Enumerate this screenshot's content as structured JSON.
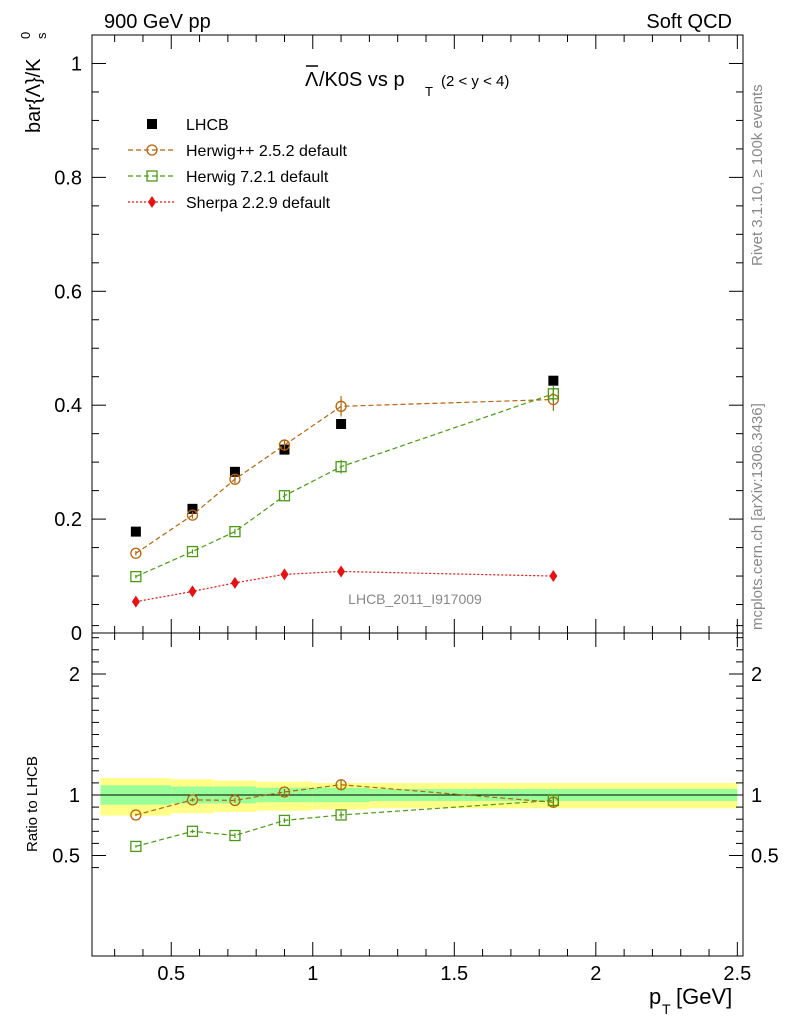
{
  "header": {
    "left": "900 GeV pp",
    "right": "Soft QCD"
  },
  "side": {
    "rivet": "Rivet 3.1.10, ≥ 100k events",
    "mcplots": "mcplots.cern.ch [arXiv:1306.3436]"
  },
  "watermark": "LHCB_2011_I917009",
  "colors": {
    "lhcb": "#000000",
    "herwigpp": "#b8640a",
    "herwig7": "#4a9a14",
    "sherpa": "#e81010",
    "band_inner": "#99ff99",
    "band_outer": "#ffff88"
  },
  "chart_data": [
    {
      "type": "scatter",
      "panel": "main",
      "title": "Λ̅/K0S vs p_T (2 < y < 4)",
      "title_main": "/K0S vs p",
      "title_sub": "T",
      "title_range": "(2 < y < 4)",
      "ylabel": "bar{Λ}/K⁰ₛ",
      "ylabel_main": "bar{Λ}/K",
      "ylabel_sup": "0",
      "ylabel_sub": "s",
      "xlim": [
        0.22,
        2.52
      ],
      "ylim": [
        0,
        1.05
      ],
      "yticks": [
        "0",
        "0.2",
        "0.4",
        "0.6",
        "0.8",
        "1"
      ],
      "ytick_values": [
        0,
        0.2,
        0.4,
        0.6,
        0.8,
        1.0
      ],
      "legend_position": "top-left",
      "series": [
        {
          "name": "LHCB",
          "marker": "square-filled",
          "line": "none",
          "x": [
            0.375,
            0.575,
            0.725,
            0.9,
            1.1,
            1.85
          ],
          "y": [
            0.178,
            0.218,
            0.283,
            0.322,
            0.367,
            0.443
          ]
        },
        {
          "name": "Herwig++ 2.5.2 default",
          "marker": "circle-open",
          "line": "dashed",
          "x": [
            0.375,
            0.575,
            0.725,
            0.9,
            1.1,
            1.85
          ],
          "y": [
            0.14,
            0.207,
            0.27,
            0.33,
            0.398,
            0.41
          ],
          "err": [
            0.004,
            0.006,
            0.007,
            0.01,
            0.018,
            0.02
          ]
        },
        {
          "name": "Herwig 7.2.1 default",
          "marker": "square-open",
          "line": "dashed",
          "x": [
            0.375,
            0.575,
            0.725,
            0.9,
            1.1,
            1.85
          ],
          "y": [
            0.099,
            0.143,
            0.178,
            0.241,
            0.292,
            0.42
          ],
          "err": [
            0.003,
            0.004,
            0.005,
            0.007,
            0.012,
            0.015
          ]
        },
        {
          "name": "Sherpa 2.2.9 default",
          "marker": "diamond-filled",
          "line": "dotted",
          "x": [
            0.375,
            0.575,
            0.725,
            0.9,
            1.1,
            1.85
          ],
          "y": [
            0.055,
            0.073,
            0.088,
            0.103,
            0.108,
            0.1
          ]
        }
      ]
    },
    {
      "type": "scatter",
      "panel": "ratio",
      "ylabel": "Ratio to LHCB",
      "xlabel": "p_T [GeV]",
      "xlabel_main": "p",
      "xlabel_sub": "T",
      "xlabel_unit": "[GeV]",
      "xlim": [
        0.22,
        2.52
      ],
      "ylim": [
        0.33,
        2.5
      ],
      "xticks": [
        "0.5",
        "1",
        "1.5",
        "2",
        "2.5"
      ],
      "xtick_values": [
        0.5,
        1.0,
        1.5,
        2.0,
        2.5
      ],
      "yticks": [
        "0.5",
        "1",
        "2"
      ],
      "ytick_values": [
        0.5,
        1.0,
        2.0
      ],
      "reference_line": 1.0,
      "bands": {
        "x_edges": [
          0.25,
          0.5,
          0.65,
          0.8,
          1.0,
          1.2,
          2.5
        ],
        "inner": [
          [
            0.92,
            1.08
          ],
          [
            0.93,
            1.07
          ],
          [
            0.93,
            1.07
          ],
          [
            0.94,
            1.06
          ],
          [
            0.94,
            1.06
          ],
          [
            0.95,
            1.05
          ]
        ],
        "outer": [
          [
            0.83,
            1.14
          ],
          [
            0.85,
            1.13
          ],
          [
            0.86,
            1.12
          ],
          [
            0.87,
            1.11
          ],
          [
            0.88,
            1.1
          ],
          [
            0.89,
            1.1
          ]
        ]
      },
      "series": [
        {
          "name": "Herwig++ 2.5.2 default",
          "marker": "circle-open",
          "line": "dashed",
          "x": [
            0.375,
            0.575,
            0.725,
            0.9,
            1.1,
            1.85
          ],
          "y": [
            0.835,
            0.96,
            0.955,
            1.025,
            1.085,
            0.94
          ],
          "err": [
            0.01,
            0.015,
            0.02,
            0.025,
            0.04,
            0.045
          ]
        },
        {
          "name": "Herwig 7.2.1 default",
          "marker": "square-open",
          "line": "dashed",
          "x": [
            0.375,
            0.575,
            0.725,
            0.9,
            1.1,
            1.85
          ],
          "y": [
            0.575,
            0.7,
            0.665,
            0.79,
            0.835,
            0.955
          ],
          "err": [
            0.01,
            0.015,
            0.02,
            0.02,
            0.03,
            0.035
          ]
        }
      ]
    }
  ]
}
